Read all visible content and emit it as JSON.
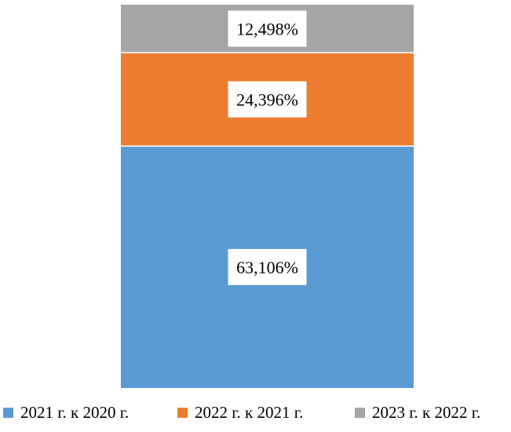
{
  "chart_data": {
    "type": "bar",
    "stacked": true,
    "categories": [
      ""
    ],
    "series": [
      {
        "name": "2021 г. к 2020 г.",
        "values": [
          63.106
        ],
        "label": "63,106%",
        "color": "#5B9BD5"
      },
      {
        "name": "2022 г. к 2021 г.",
        "values": [
          24.396
        ],
        "label": "24,396%",
        "color": "#ED7D31"
      },
      {
        "name": "2023 г. к 2022 г.",
        "values": [
          12.498
        ],
        "label": "12,498%",
        "color": "#A5A5A5"
      }
    ],
    "ylim": [
      0,
      100
    ],
    "grid": false,
    "legend": "bottom",
    "title": "",
    "xlabel": "",
    "ylabel": ""
  }
}
